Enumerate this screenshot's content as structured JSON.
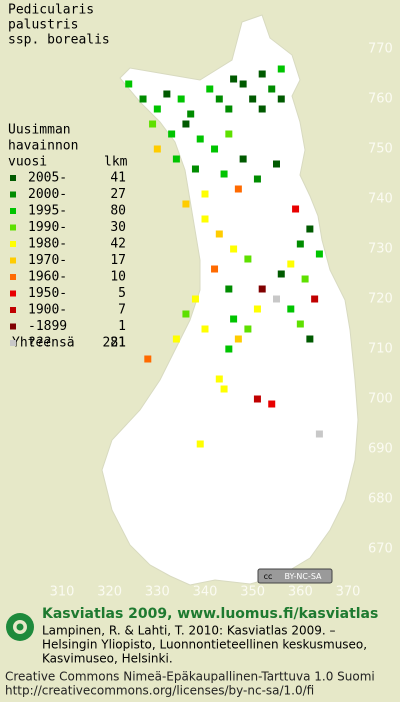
{
  "title": [
    "Pedicularis",
    "palustris",
    "ssp. borealis"
  ],
  "legend": {
    "heading": [
      "Uusimman",
      "havainnon",
      "vuosi"
    ],
    "count_heading": "lkm",
    "rows": [
      {
        "label": "2005-",
        "count": 41,
        "color": "#005a00"
      },
      {
        "label": "2000-",
        "count": 27,
        "color": "#008c00"
      },
      {
        "label": "1995-",
        "count": 80,
        "color": "#00c400"
      },
      {
        "label": "1990-",
        "count": 30,
        "color": "#5ee000"
      },
      {
        "label": "1980-",
        "count": 42,
        "color": "#ffff00"
      },
      {
        "label": "1970-",
        "count": 17,
        "color": "#ffcc00"
      },
      {
        "label": "1960-",
        "count": 10,
        "color": "#ff6a00"
      },
      {
        "label": "1950-",
        "count": 5,
        "color": "#e80000"
      },
      {
        "label": "1900-",
        "count": 7,
        "color": "#c00000"
      },
      {
        "label": "-1899",
        "count": 1,
        "color": "#800000"
      },
      {
        "label": "???",
        "count": 21,
        "color": "#c8c8c8"
      }
    ],
    "total_label": "Yhteensä",
    "total": 281
  },
  "axes": {
    "xlim": [
      310,
      370
    ],
    "xticks": [
      310,
      320,
      330,
      340,
      350,
      360,
      370
    ],
    "ylim": [
      670,
      770
    ],
    "yticks": [
      770,
      760,
      750,
      740,
      730,
      720,
      710,
      700,
      690,
      680,
      670
    ]
  },
  "squares": [
    [
      346,
      764,
      0
    ],
    [
      348,
      763,
      0
    ],
    [
      352,
      765,
      0
    ],
    [
      354,
      762,
      1
    ],
    [
      356,
      760,
      0
    ],
    [
      350,
      760,
      0
    ],
    [
      345,
      758,
      1
    ],
    [
      352,
      758,
      0
    ],
    [
      356,
      766,
      2
    ],
    [
      341,
      762,
      2
    ],
    [
      343,
      760,
      1
    ],
    [
      324,
      763,
      2
    ],
    [
      327,
      760,
      1
    ],
    [
      330,
      758,
      2
    ],
    [
      332,
      761,
      0
    ],
    [
      335,
      760,
      2
    ],
    [
      337,
      757,
      1
    ],
    [
      329,
      755,
      3
    ],
    [
      333,
      753,
      2
    ],
    [
      336,
      755,
      0
    ],
    [
      339,
      752,
      2
    ],
    [
      330,
      750,
      5
    ],
    [
      334,
      748,
      2
    ],
    [
      338,
      746,
      1
    ],
    [
      342,
      750,
      2
    ],
    [
      345,
      753,
      3
    ],
    [
      348,
      748,
      0
    ],
    [
      344,
      745,
      2
    ],
    [
      340,
      741,
      4
    ],
    [
      336,
      739,
      5
    ],
    [
      347,
      742,
      6
    ],
    [
      351,
      744,
      1
    ],
    [
      355,
      747,
      0
    ],
    [
      359,
      738,
      7
    ],
    [
      362,
      734,
      0
    ],
    [
      360,
      731,
      1
    ],
    [
      364,
      729,
      2
    ],
    [
      358,
      727,
      4
    ],
    [
      361,
      724,
      3
    ],
    [
      363,
      720,
      8
    ],
    [
      358,
      718,
      2
    ],
    [
      360,
      715,
      3
    ],
    [
      362,
      712,
      0
    ],
    [
      355,
      720,
      10
    ],
    [
      352,
      722,
      9
    ],
    [
      356,
      725,
      0
    ],
    [
      340,
      736,
      4
    ],
    [
      343,
      733,
      5
    ],
    [
      346,
      730,
      4
    ],
    [
      349,
      728,
      3
    ],
    [
      342,
      726,
      6
    ],
    [
      345,
      722,
      1
    ],
    [
      338,
      720,
      4
    ],
    [
      336,
      717,
      3
    ],
    [
      340,
      714,
      4
    ],
    [
      346,
      716,
      2
    ],
    [
      349,
      714,
      3
    ],
    [
      351,
      718,
      4
    ],
    [
      347,
      712,
      5
    ],
    [
      345,
      710,
      2
    ],
    [
      334,
      712,
      4
    ],
    [
      328,
      708,
      6
    ],
    [
      343,
      704,
      4
    ],
    [
      351,
      700,
      8
    ],
    [
      354,
      699,
      7
    ],
    [
      339,
      691,
      4
    ],
    [
      364,
      693,
      10
    ],
    [
      344,
      702,
      4
    ]
  ],
  "cc_badge": [
    "cc",
    "BY-NC-SA"
  ],
  "footer": {
    "title": "Kasviatlas 2009, www.luomus.fi/kasviatlas",
    "citation": [
      "Lampinen, R. & Lahti, T. 2010: Kasviatlas 2009. –",
      "Helsingin Yliopisto, Luonnontieteellinen keskusmuseo,",
      "Kasvimuseo, Helsinki."
    ],
    "license": [
      "Creative Commons Nimeä-Epäkaupallinen-Tarttuva 1.0 Suomi",
      "http://creativecommons.org/licenses/by-nc-sa/1.0/fi"
    ]
  }
}
